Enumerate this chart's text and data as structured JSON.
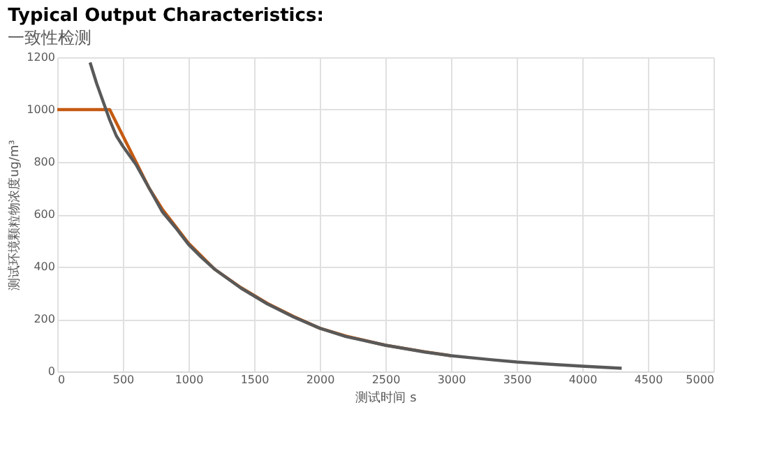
{
  "chart_data": {
    "type": "line",
    "title": "Typical Output Characteristics:",
    "subtitle": "一致性检测",
    "xlabel": "测试时间 s",
    "ylabel": "测试环境颗粒物浓度ug/m³",
    "xlim": [
      0,
      5000
    ],
    "xticks": [
      0,
      500,
      1000,
      1500,
      2000,
      2500,
      3000,
      3500,
      4000,
      4500,
      5000
    ],
    "ylim": [
      0,
      1200
    ],
    "yticks": [
      0,
      200,
      400,
      600,
      800,
      1000,
      1200
    ],
    "grid": true,
    "legend": false,
    "marker": "none",
    "line_style": "solid",
    "series": [
      {
        "color": "#c55a11",
        "x": [
          0,
          100,
          200,
          300,
          400,
          450,
          500,
          600,
          700,
          800,
          900,
          1000,
          1100,
          1200,
          1400,
          1600,
          1800,
          2000,
          2200,
          2500,
          2800,
          3000
        ],
        "values": [
          1000,
          1000,
          1000,
          1000,
          1000,
          950,
          900,
          800,
          700,
          620,
          555,
          490,
          440,
          390,
          320,
          260,
          210,
          165,
          135,
          100,
          75,
          60
        ]
      },
      {
        "color": "#595959",
        "x": [
          250,
          300,
          350,
          400,
          450,
          500,
          600,
          700,
          800,
          900,
          1000,
          1100,
          1200,
          1400,
          1600,
          1800,
          2000,
          2200,
          2500,
          2800,
          3000,
          3300,
          3500,
          3800,
          4000,
          4300
        ],
        "values": [
          1180,
          1100,
          1030,
          960,
          900,
          860,
          790,
          700,
          610,
          550,
          485,
          435,
          390,
          318,
          258,
          208,
          165,
          133,
          100,
          74,
          60,
          45,
          36,
          26,
          20,
          12
        ]
      }
    ]
  }
}
